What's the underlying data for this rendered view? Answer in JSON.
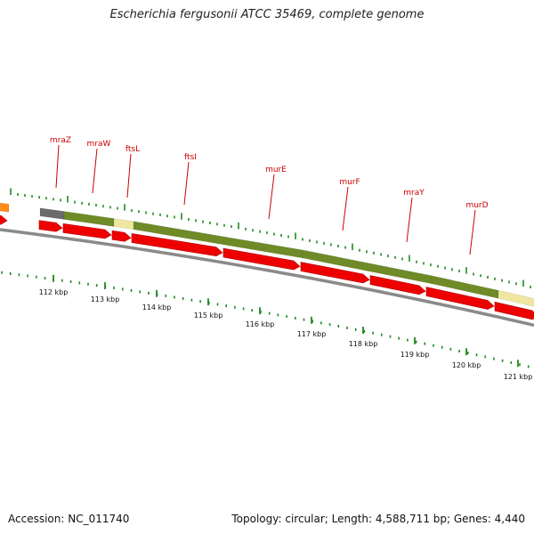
{
  "title": "Escherichia fergusonii ATCC 35469, complete genome",
  "footer": {
    "accession": "Accession: NC_011740",
    "summary": "Topology: circular; Length: 4,588,711 bp; Genes: 4,440"
  },
  "colors": {
    "cds_red": "#ee0000",
    "feature_green": "#6e8b28",
    "feature_gray": "#6b6b6b",
    "feature_pale": "#efe7a0",
    "feature_orange": "#ff8c1a",
    "tick_green": "#1f8a1f",
    "label_red": "#cc0000"
  },
  "genes": [
    {
      "name": "mraZ"
    },
    {
      "name": "mraW"
    },
    {
      "name": "ftsL"
    },
    {
      "name": "ftsI"
    },
    {
      "name": "murE"
    },
    {
      "name": "murF"
    },
    {
      "name": "mraY"
    },
    {
      "name": "murD"
    }
  ],
  "scale_labels": [
    "112 kbp",
    "113 kbp",
    "114 kbp",
    "115 kbp",
    "116 kbp",
    "117 kbp",
    "118 kbp",
    "119 kbp",
    "120 kbp",
    "121 kbp"
  ]
}
